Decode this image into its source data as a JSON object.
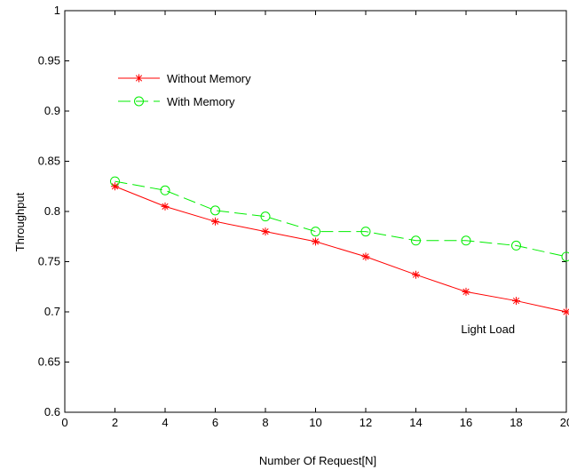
{
  "chart_data": {
    "type": "line",
    "title": "",
    "xlabel": "Number Of Request[N]",
    "ylabel": "Throughput",
    "xlim": [
      0,
      20
    ],
    "ylim": [
      0.6,
      1
    ],
    "xticks": [
      0,
      2,
      4,
      6,
      8,
      10,
      12,
      14,
      16,
      18,
      20
    ],
    "yticks": [
      0.6,
      0.65,
      0.7,
      0.75,
      0.8,
      0.85,
      0.9,
      0.95,
      1
    ],
    "ytick_labels": [
      "0.6",
      "0.65",
      "0.7",
      "0.75",
      "0.8",
      "0.85",
      "0.9",
      "0.95",
      "1"
    ],
    "grid": false,
    "legend_position": "top-left",
    "x": [
      2,
      4,
      6,
      8,
      10,
      12,
      14,
      16,
      18,
      20
    ],
    "series": [
      {
        "name": "Without Memory",
        "color": "#ff0000",
        "line_style": "solid",
        "marker": "asterisk",
        "values": [
          0.825,
          0.805,
          0.79,
          0.78,
          0.77,
          0.755,
          0.737,
          0.72,
          0.711,
          0.7
        ]
      },
      {
        "name": "With Memory",
        "color": "#00ee00",
        "line_style": "dashed",
        "marker": "circle",
        "values": [
          0.83,
          0.821,
          0.801,
          0.795,
          0.78,
          0.78,
          0.771,
          0.771,
          0.766,
          0.755
        ]
      }
    ],
    "annotations": [
      {
        "text": "Light Load",
        "x": 15.8,
        "y": 0.683
      }
    ]
  }
}
